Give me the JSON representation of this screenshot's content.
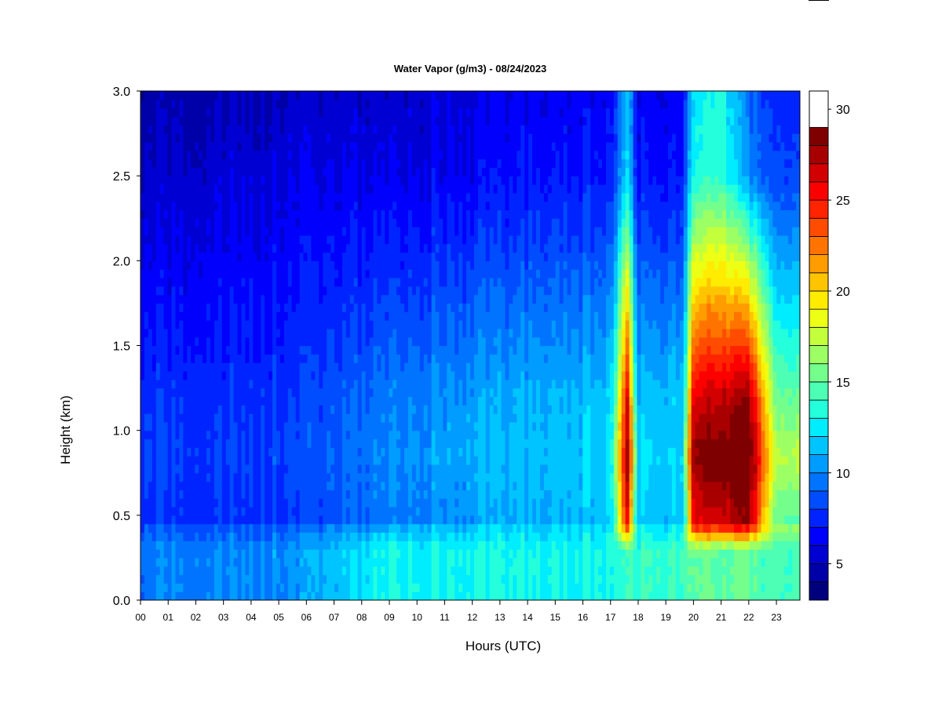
{
  "chart_data": {
    "type": "heatmap",
    "title": "Water Vapor (g/m3) - 08/24/2023",
    "xlabel": "Hours (UTC)",
    "ylabel": "Height (km)",
    "x_ticks": [
      "00",
      "01",
      "02",
      "03",
      "04",
      "05",
      "06",
      "07",
      "08",
      "09",
      "10",
      "11",
      "12",
      "13",
      "14",
      "15",
      "16",
      "17",
      "18",
      "19",
      "20",
      "21",
      "22",
      "23"
    ],
    "xlim": [
      0,
      23.85
    ],
    "y_ticks": [
      "0.0",
      "0.5",
      "1.0",
      "1.5",
      "2.0",
      "2.5",
      "3.0"
    ],
    "ylim": [
      0,
      3
    ],
    "colorbar": {
      "range": [
        3,
        31
      ],
      "step": 1,
      "ticks": [
        "5",
        "10",
        "15",
        "20",
        "25",
        "30"
      ],
      "colors": [
        "#00007f",
        "#0000a8",
        "#0000d2",
        "#0000fc",
        "#0024ff",
        "#004cff",
        "#0074ff",
        "#009cff",
        "#00c4ff",
        "#00ecff",
        "#24ffdc",
        "#4cffb4",
        "#74ff8c",
        "#9cff64",
        "#c4ff3c",
        "#ecff14",
        "#ffec00",
        "#ffc400",
        "#ff9c00",
        "#ff7400",
        "#ff4c00",
        "#ff2400",
        "#fc0000",
        "#d20000",
        "#a80000",
        "#7f0000"
      ]
    },
    "approx_field": {
      "description_hours": [
        0,
        3,
        6,
        7,
        9,
        12,
        15,
        17,
        17.6,
        18,
        19.6,
        20,
        21,
        22,
        23
      ],
      "surface_0_0.3km": [
        9.5,
        10,
        10.5,
        11.5,
        13,
        13,
        13,
        13,
        14,
        14,
        14,
        15,
        15,
        15,
        14
      ],
      "peak_0.5_1.2km": [
        8,
        8,
        8.5,
        9,
        10,
        11,
        11.5,
        12,
        28,
        12,
        12,
        28,
        29,
        30,
        17
      ],
      "top_2.5_3km": [
        5,
        5.5,
        6,
        6,
        6,
        6.5,
        7,
        7,
        12,
        7,
        7,
        13,
        14,
        10,
        8
      ]
    }
  }
}
